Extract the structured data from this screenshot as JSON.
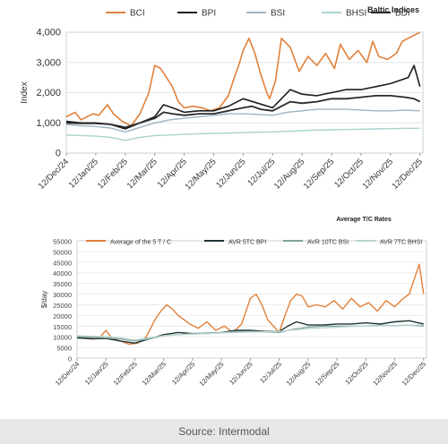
{
  "source": "Source: Intermodal",
  "chart_data": [
    {
      "type": "line",
      "title": "Baltic Indices",
      "ylabel": "Index",
      "xlabel": "",
      "ylim": [
        0,
        4000
      ],
      "yticks": [
        0,
        1000,
        2000,
        3000,
        4000
      ],
      "ytick_labels": [
        "0",
        "1,000",
        "2,000",
        "3,000",
        "4,000"
      ],
      "x_range": [
        0,
        12.1
      ],
      "tick_labels": [
        "12/Dec/24",
        "12/Jan/25",
        "12/Feb/25",
        "12/Mar/25",
        "12/Apr/25",
        "12/May/25",
        "12/Jun/25",
        "12/Jul/25",
        "12/Aug/25",
        "12/Sep/25",
        "12/Oct/25",
        "12/Nov/25",
        "12/Dec/25"
      ],
      "legend_position": "top",
      "grid": "horizontal",
      "series": [
        {
          "name": "BCI",
          "color": "#e0803a",
          "width": 1.6,
          "x": [
            0,
            0.3,
            0.5,
            0.9,
            1.1,
            1.4,
            1.6,
            1.9,
            2.2,
            2.5,
            2.8,
            3.0,
            3.2,
            3.4,
            3.6,
            3.8,
            4.0,
            4.3,
            4.6,
            4.9,
            5.2,
            5.5,
            5.7,
            5.85,
            6.0,
            6.2,
            6.4,
            6.6,
            6.8,
            6.9,
            7.1,
            7.3,
            7.6,
            7.9,
            8.2,
            8.5,
            8.8,
            9.1,
            9.3,
            9.6,
            9.9,
            10.2,
            10.4,
            10.6,
            10.9,
            11.2,
            11.4,
            11.6,
            11.8,
            12.0
          ],
          "y": [
            1200,
            1350,
            1100,
            1300,
            1250,
            1600,
            1300,
            1050,
            900,
            1300,
            2000,
            2900,
            2800,
            2500,
            2200,
            1700,
            1500,
            1550,
            1500,
            1400,
            1500,
            1900,
            2500,
            2900,
            3400,
            3800,
            3300,
            2600,
            2000,
            1800,
            2400,
            3800,
            3500,
            2700,
            3200,
            2900,
            3300,
            2800,
            3600,
            3100,
            3400,
            3000,
            3700,
            3200,
            3100,
            3300,
            3700,
            3800,
            3900,
            4000
          ]
        },
        {
          "name": "BPI",
          "color": "#1d1d1d",
          "width": 1.6,
          "x": [
            0,
            0.5,
            1.0,
            1.5,
            2.0,
            2.5,
            3.0,
            3.3,
            3.6,
            4.0,
            4.5,
            5.0,
            5.5,
            6.0,
            6.5,
            7.0,
            7.3,
            7.6,
            8.0,
            8.5,
            9.0,
            9.5,
            10.0,
            10.5,
            11.0,
            11.3,
            11.6,
            11.8,
            12.0
          ],
          "y": [
            1050,
            1000,
            1000,
            950,
            800,
            1000,
            1200,
            1600,
            1500,
            1350,
            1400,
            1400,
            1550,
            1800,
            1650,
            1500,
            1800,
            2100,
            1950,
            1900,
            2000,
            2100,
            2100,
            2200,
            2300,
            2400,
            2500,
            2900,
            2200
          ]
        },
        {
          "name": "BSI",
          "color": "#9db3c2",
          "width": 1.4,
          "x": [
            0,
            0.5,
            1.0,
            1.5,
            2.0,
            2.5,
            3.0,
            3.5,
            4.0,
            4.5,
            5.0,
            5.5,
            6.0,
            6.5,
            7.0,
            7.5,
            8.0,
            8.5,
            9.0,
            9.5,
            10.0,
            10.5,
            11.0,
            11.5,
            12.0
          ],
          "y": [
            950,
            900,
            880,
            830,
            700,
            850,
            1000,
            1100,
            1150,
            1200,
            1250,
            1300,
            1300,
            1280,
            1250,
            1350,
            1400,
            1450,
            1450,
            1450,
            1420,
            1400,
            1400,
            1420,
            1400
          ]
        },
        {
          "name": "BHSI",
          "color": "#a8d3d0",
          "width": 1.4,
          "x": [
            0,
            0.5,
            1.0,
            1.5,
            2.0,
            2.5,
            3.0,
            3.5,
            4.0,
            4.5,
            5.0,
            5.5,
            6.0,
            6.5,
            7.0,
            7.5,
            8.0,
            8.5,
            9.0,
            9.5,
            10.0,
            10.5,
            11.0,
            11.5,
            12.0
          ],
          "y": [
            600,
            580,
            560,
            520,
            420,
            520,
            580,
            600,
            620,
            640,
            650,
            660,
            680,
            690,
            700,
            720,
            740,
            760,
            770,
            780,
            790,
            800,
            810,
            820,
            820
          ]
        },
        {
          "name": "BDI",
          "color": "#2a2a2a",
          "width": 1.8,
          "x": [
            0,
            0.5,
            1.0,
            1.5,
            2.0,
            2.5,
            3.0,
            3.3,
            3.6,
            4.0,
            4.5,
            5.0,
            5.5,
            6.0,
            6.3,
            6.6,
            7.0,
            7.3,
            7.6,
            8.0,
            8.5,
            9.0,
            9.5,
            10.0,
            10.5,
            11.0,
            11.5,
            11.8,
            12.0
          ],
          "y": [
            1000,
            980,
            980,
            950,
            850,
            1000,
            1150,
            1350,
            1300,
            1250,
            1300,
            1300,
            1400,
            1500,
            1550,
            1450,
            1400,
            1550,
            1700,
            1650,
            1700,
            1800,
            1800,
            1850,
            1900,
            1900,
            1850,
            1800,
            1700
          ]
        }
      ]
    },
    {
      "type": "line",
      "title": "Average T/C Rates",
      "ylabel": "$/day",
      "xlabel": "",
      "ylim": [
        0,
        55000
      ],
      "yticks": [
        0,
        5000,
        10000,
        15000,
        20000,
        25000,
        30000,
        35000,
        40000,
        45000,
        50000,
        55000
      ],
      "ytick_labels": [
        "0",
        "5000",
        "10000",
        "15000",
        "20000",
        "25000",
        "30000",
        "35000",
        "40000",
        "45000",
        "50000",
        "55000"
      ],
      "x_range": [
        0,
        12.1
      ],
      "tick_labels": [
        "12/Dec/24",
        "12/Jan/25",
        "12/Feb/25",
        "12/Mar/25",
        "12/Apr/25",
        "12/May/25",
        "12/Jun/25",
        "12/Jul/25",
        "12/Aug/25",
        "12/Sep/25",
        "12/Oct/25",
        "12/Nov/25",
        "12/Dec/25"
      ],
      "legend_position": "top",
      "grid": "horizontal",
      "series": [
        {
          "name": "Average of the 5 T / C",
          "color": "#e0803a",
          "width": 1.4,
          "x": [
            0,
            0.4,
            0.8,
            1.0,
            1.2,
            1.5,
            1.8,
            2.1,
            2.4,
            2.7,
            2.9,
            3.1,
            3.3,
            3.5,
            3.7,
            3.9,
            4.2,
            4.5,
            4.8,
            5.1,
            5.4,
            5.7,
            5.9,
            6.0,
            6.2,
            6.4,
            6.6,
            6.8,
            7.0,
            7.2,
            7.4,
            7.6,
            7.8,
            8.0,
            8.3,
            8.6,
            8.9,
            9.2,
            9.5,
            9.8,
            10.1,
            10.4,
            10.7,
            11.0,
            11.3,
            11.5,
            11.7,
            11.85,
            12.0
          ],
          "y": [
            10000,
            9500,
            9800,
            13000,
            9500,
            8000,
            6500,
            7000,
            10000,
            18000,
            22000,
            25000,
            23000,
            20000,
            18000,
            16000,
            14000,
            17000,
            13000,
            15000,
            12000,
            16000,
            24000,
            28000,
            30000,
            25000,
            18000,
            15000,
            12000,
            20000,
            27000,
            30000,
            29000,
            24000,
            25000,
            24000,
            27000,
            23000,
            28000,
            24000,
            26000,
            22000,
            27000,
            24000,
            28000,
            30000,
            38000,
            44000,
            30000
          ]
        },
        {
          "name": "AVR 5TC BPI",
          "color": "#1e3335",
          "width": 1.4,
          "x": [
            0,
            0.5,
            1.0,
            1.5,
            2.0,
            2.5,
            3.0,
            3.5,
            4.0,
            4.5,
            5.0,
            5.5,
            6.0,
            6.5,
            7.0,
            7.3,
            7.6,
            8.0,
            8.5,
            9.0,
            9.5,
            10.0,
            10.5,
            11.0,
            11.5,
            12.0
          ],
          "y": [
            9500,
            9000,
            9200,
            8000,
            7000,
            9000,
            11000,
            12000,
            11500,
            11500,
            12000,
            13000,
            13000,
            12500,
            12500,
            15000,
            17000,
            15500,
            15500,
            16000,
            16000,
            16500,
            16000,
            17000,
            17500,
            16000
          ]
        },
        {
          "name": "AVR 10TC BSI",
          "color": "#7ea39e",
          "width": 1.3,
          "x": [
            0,
            0.5,
            1.0,
            1.5,
            2.0,
            2.5,
            3.0,
            3.5,
            4.0,
            4.5,
            5.0,
            5.5,
            6.0,
            6.5,
            7.0,
            7.5,
            8.0,
            8.5,
            9.0,
            9.5,
            10.0,
            10.5,
            11.0,
            11.5,
            12.0
          ],
          "y": [
            10000,
            9800,
            9500,
            9000,
            8000,
            9000,
            10500,
            11000,
            11500,
            11800,
            12000,
            12500,
            12500,
            12300,
            12000,
            13500,
            14500,
            15000,
            15000,
            15000,
            15000,
            15500,
            15200,
            15500,
            15000
          ]
        },
        {
          "name": "AVR 7TC BHSI",
          "color": "#b9d3cf",
          "width": 1.3,
          "x": [
            0,
            0.5,
            1.0,
            1.5,
            2.0,
            2.5,
            3.0,
            3.5,
            4.0,
            4.5,
            5.0,
            5.5,
            6.0,
            6.5,
            7.0,
            7.5,
            8.0,
            8.5,
            9.0,
            9.5,
            10.0,
            10.5,
            11.0,
            11.5,
            12.0
          ],
          "y": [
            10500,
            10300,
            10000,
            9500,
            8500,
            9500,
            10500,
            11000,
            11200,
            11500,
            11800,
            12000,
            12200,
            12300,
            12500,
            13200,
            13800,
            14200,
            14500,
            14800,
            15000,
            15200,
            15300,
            15500,
            15500
          ]
        }
      ]
    }
  ]
}
